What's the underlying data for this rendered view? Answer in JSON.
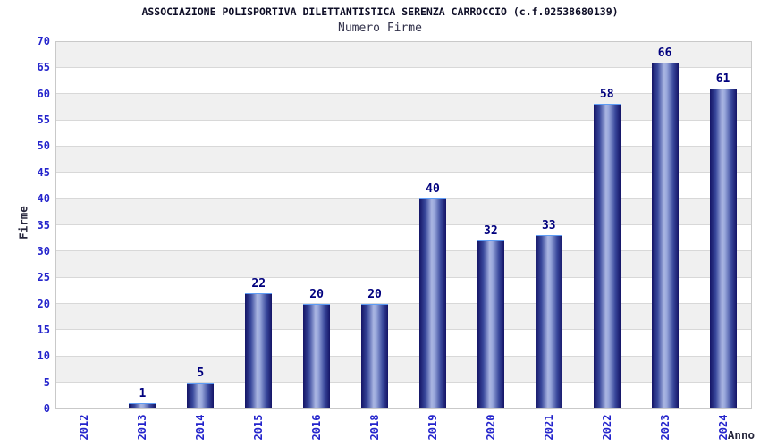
{
  "chart_data": {
    "type": "bar",
    "title": "ASSOCIAZIONE POLISPORTIVA DILETTANTISTICA SERENZA CARROCCIO (c.f.02538680139)",
    "subtitle": "Numero Firme",
    "categories": [
      "2012",
      "2013",
      "2014",
      "2015",
      "2016",
      "2018",
      "2019",
      "2020",
      "2021",
      "2022",
      "2023",
      "2024"
    ],
    "values": [
      0,
      1,
      5,
      22,
      20,
      20,
      40,
      32,
      33,
      58,
      66,
      61
    ],
    "xlabel": "Anno",
    "ylabel": "Firme",
    "ylim": [
      0,
      70
    ],
    "ytick_step": 5,
    "grid": true,
    "legend": false,
    "band_style": "alternating-horizontal",
    "value_labels_shown": true,
    "zero_values_hidden": true
  },
  "colors": {
    "title": "#0d0d26",
    "subtitle": "#32324b",
    "axis_title": "#26263c",
    "tick_label": "#2424cc",
    "value_label": "#00007e",
    "bar_dark": "#141466",
    "bar_mid": "#39489c",
    "bar_light": "#aab6e2",
    "bar_cap": "#5e9cf4",
    "band_gray": "#f0f0f0",
    "gridline": "#d8d8d8",
    "plot_border": "#c9c9c9"
  }
}
